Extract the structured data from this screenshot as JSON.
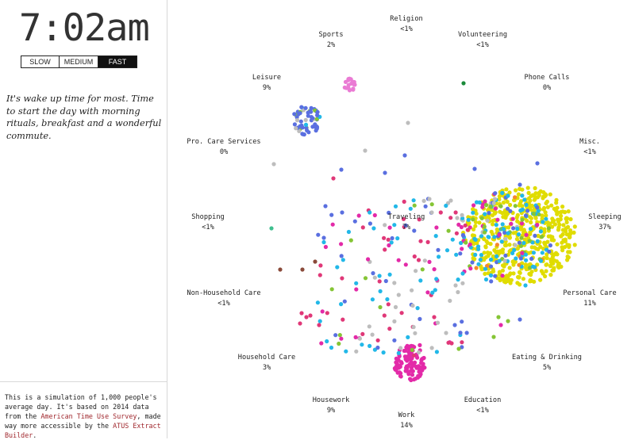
{
  "clock": {
    "time": "7:02am"
  },
  "speed": {
    "options": [
      "SLOW",
      "MEDIUM",
      "FAST"
    ],
    "selected": "FAST"
  },
  "description": "It's wake up time for most. Time to start the day with morning rituals, breakfast and a wonderful commute.",
  "footer": {
    "text1": "This is a simulation of 1,000 people's average day. It's based on 2014 data from the ",
    "link1": "American Time Use Survey",
    "text2": ", made way more accessible by the ",
    "link2": "ATUS Extract Builder",
    "text3": "."
  },
  "colors": {
    "sleeping": "#e0dc00",
    "personal_care": "#22b8e8",
    "eating": "#85c535",
    "work": "#e32aa8",
    "leisure": "#5a6fe0",
    "sports": "#ea7bd4",
    "traveling": "#bdbdbd",
    "household": "#e03878",
    "education": "#f58a2a",
    "care": "#8a4a3a",
    "shopping": "#3fbf8f",
    "phone": "#1a8a3a",
    "misc": "#2b2bb8"
  },
  "activities": [
    {
      "key": "religion",
      "name": "Religion",
      "pct": "<1%"
    },
    {
      "key": "sports",
      "name": "Sports",
      "pct": "2%"
    },
    {
      "key": "volunteering",
      "name": "Volunteering",
      "pct": "<1%"
    },
    {
      "key": "leisure",
      "name": "Leisure",
      "pct": "9%"
    },
    {
      "key": "phone_calls",
      "name": "Phone Calls",
      "pct": "0%"
    },
    {
      "key": "pro_care",
      "name": "Pro. Care Services",
      "pct": "0%"
    },
    {
      "key": "misc",
      "name": "Misc.",
      "pct": "<1%"
    },
    {
      "key": "shopping",
      "name": "Shopping",
      "pct": "<1%"
    },
    {
      "key": "traveling",
      "name": "Traveling",
      "pct": "7%"
    },
    {
      "key": "sleeping",
      "name": "Sleeping",
      "pct": "37%"
    },
    {
      "key": "non_household_care",
      "name": "Non-Household Care",
      "pct": "<1%"
    },
    {
      "key": "personal_care",
      "name": "Personal Care",
      "pct": "11%"
    },
    {
      "key": "household_care",
      "name": "Household Care",
      "pct": "3%"
    },
    {
      "key": "eating",
      "name": "Eating & Drinking",
      "pct": "5%"
    },
    {
      "key": "housework",
      "name": "Housework",
      "pct": "9%"
    },
    {
      "key": "education",
      "name": "Education",
      "pct": "<1%"
    },
    {
      "key": "work",
      "name": "Work",
      "pct": "14%"
    }
  ]
}
